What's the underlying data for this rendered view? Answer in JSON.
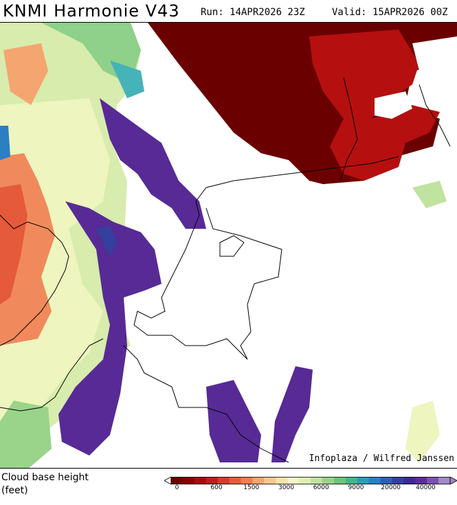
{
  "header": {
    "title": "KNMI Harmonie V43",
    "run": "Run: 14APR2026 23Z",
    "valid": "Valid: 15APR2026 00Z"
  },
  "map": {
    "credit": "Infoplaza / Wilfred Janssen",
    "layers": [
      {
        "name": "high-cloud-north",
        "color": "#6b0000"
      },
      {
        "name": "red-cloud-northeast",
        "color": "#b50f0f"
      },
      {
        "name": "low-cloud-purple",
        "color": "#572a96"
      },
      {
        "name": "west-warm-cloud",
        "color": "#f27c54"
      },
      {
        "name": "west-mid-cloud",
        "color": "#c9e69e"
      }
    ]
  },
  "legend": {
    "variable": "Cloud base height",
    "unit": "(feet)",
    "labels": [
      "0",
      "600",
      "1500",
      "3000",
      "6000",
      "9000",
      "20000",
      "40000"
    ],
    "colors": [
      "#6b0000",
      "#8a0000",
      "#a80a0a",
      "#c21b1b",
      "#d83a2c",
      "#e85a3a",
      "#f27c54",
      "#f5a56f",
      "#f8c890",
      "#fae3ac",
      "#f6f6c6",
      "#dff0b2",
      "#c0e3a0",
      "#99d48a",
      "#6ec47a",
      "#48b48c",
      "#2f9cb5",
      "#2c7fc2",
      "#2c5fb4",
      "#34409e",
      "#3c2a8e",
      "#5a2d98",
      "#7d4fb0",
      "#a28ac8"
    ]
  }
}
